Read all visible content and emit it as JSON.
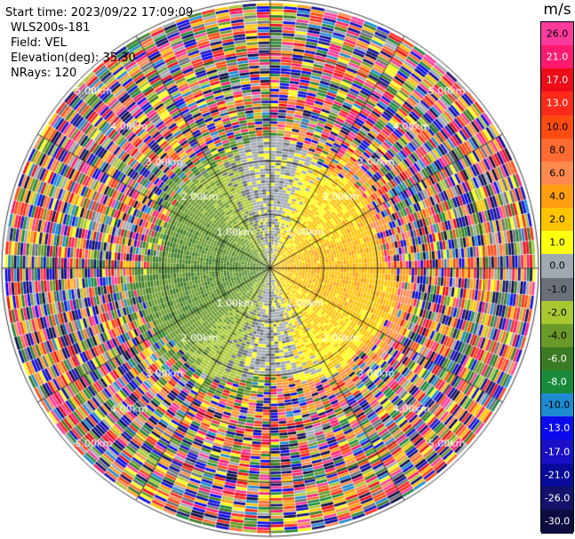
{
  "info": {
    "start_time": "Start time: 2023/09/22 17:09:09",
    "instrument": "WLS200s-181",
    "field": "Field: VEL",
    "elevation": "Elevation(deg): 35.30",
    "nrays": "NRays: 120"
  },
  "colorbar": {
    "title": "m/s",
    "ticks": [
      "26.0",
      "21.0",
      "17.0",
      "13.0",
      "10.0",
      "8.0",
      "6.0",
      "4.0",
      "2.0",
      "1.0",
      "0.0",
      "-1.0",
      "-2.0",
      "-4.0",
      "-6.0",
      "-8.0",
      "-10.0",
      "-13.0",
      "-17.0",
      "-21.0",
      "-26.0",
      "-30.0"
    ],
    "colors": [
      "#ff3a9a",
      "#ff1a6e",
      "#ee0b18",
      "#ff2a1a",
      "#ff4a10",
      "#ff6a30",
      "#ff8a50",
      "#ff9e10",
      "#ffc400",
      "#ffff10",
      "#a0a8b0",
      "#6a7078",
      "#a8c832",
      "#6a9a2a",
      "#3a7a22",
      "#1a8a3a",
      "#1e8ad2",
      "#0a0aee",
      "#1a10c8",
      "#0a0a9a",
      "#14126a",
      "#0c0c40"
    ]
  },
  "chart_data": {
    "type": "heatmap",
    "projection": "polar PPI (plan position indicator)",
    "field": "VEL",
    "units": "m/s",
    "nrays": 120,
    "elevation_deg": 35.3,
    "range_rings_km": [
      1.0,
      2.0,
      3.0,
      4.0,
      5.0
    ],
    "range_ring_labels": [
      "1.00km",
      "2.00km",
      "3.00km",
      "4.00km",
      "5.00km"
    ],
    "max_range_km": 5.0,
    "value_range": [
      -30.0,
      30.0
    ],
    "pattern": {
      "clean_signal_max_km": 2.2,
      "near_field_velocity_by_side": {
        "west": -5.0,
        "east": 2.5
      },
      "outer_region": "noise (random colors)"
    },
    "grid": true
  }
}
